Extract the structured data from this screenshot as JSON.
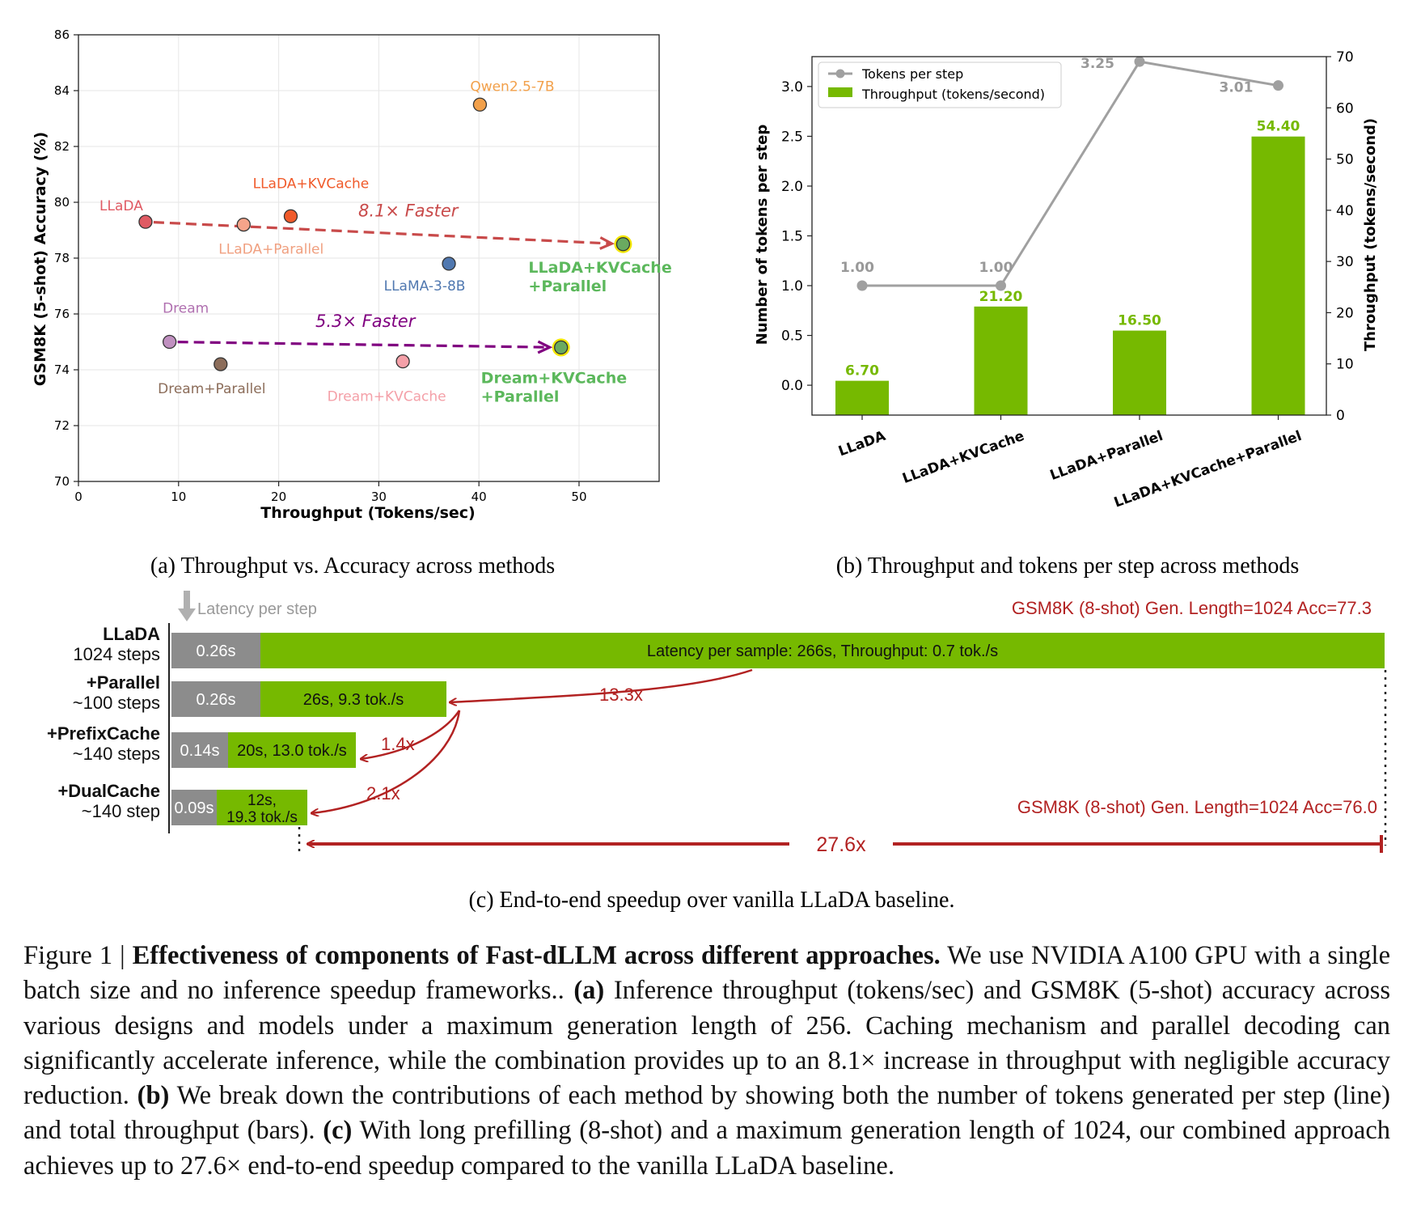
{
  "chart_data": [
    {
      "type": "scatter",
      "id": "a",
      "xlabel": "Throughput (Tokens/sec)",
      "ylabel": "GSM8K (5-shot) Accuracy (%)",
      "xlim": [
        0,
        58
      ],
      "ylim": [
        70,
        86
      ],
      "xticks": [
        0,
        10,
        20,
        30,
        40,
        50
      ],
      "yticks": [
        70,
        72,
        74,
        76,
        78,
        80,
        82,
        84,
        86
      ],
      "grid": true,
      "points": [
        {
          "name": "LLaDA",
          "x": 6.7,
          "y": 79.3,
          "color": "#e05a63",
          "label_color": "#e05a63"
        },
        {
          "name": "LLaDA+Parallel",
          "x": 16.5,
          "y": 79.2,
          "color": "#f5a48a",
          "label_color": "#f0a080"
        },
        {
          "name": "LLaDA+KVCache",
          "x": 21.2,
          "y": 79.5,
          "color": "#f05a2a",
          "label_color": "#f05a2a"
        },
        {
          "name": "Qwen2.5-7B",
          "x": 40.1,
          "y": 83.5,
          "color": "#f2a04a",
          "label_color": "#f2a04a"
        },
        {
          "name": "LLaMA-3-8B",
          "x": 37.0,
          "y": 77.8,
          "color": "#5078b0",
          "label_color": "#5078b0"
        },
        {
          "name": "LLaDA+KVCache\n+Parallel",
          "x": 54.4,
          "y": 78.5,
          "color": "#6aaa60",
          "label_color": "#5cb85c",
          "highlight": true
        },
        {
          "name": "Dream",
          "x": 9.1,
          "y": 75.0,
          "color": "#c090c0",
          "label_color": "#b070b0"
        },
        {
          "name": "Dream+Parallel",
          "x": 14.2,
          "y": 74.2,
          "color": "#8c6d5a",
          "label_color": "#8c6d5a"
        },
        {
          "name": "Dream+KVCache",
          "x": 32.4,
          "y": 74.3,
          "color": "#f4a0a8",
          "label_color": "#f4a0a8"
        },
        {
          "name": "Dream+KVCache\n+Parallel",
          "x": 48.2,
          "y": 74.8,
          "color": "#6aaa60",
          "label_color": "#5cb85c",
          "highlight": true
        }
      ],
      "arrows": [
        {
          "label": "8.1× Faster",
          "from": [
            6.7,
            79.3
          ],
          "to": [
            54.4,
            78.5
          ],
          "color": "#c84a4a"
        },
        {
          "label": "5.3× Faster",
          "from": [
            9.1,
            75.0
          ],
          "to": [
            48.2,
            74.8
          ],
          "color": "#800080"
        }
      ]
    },
    {
      "type": "bar+line",
      "id": "b",
      "categories": [
        "LLaDA",
        "LLaDA+KVCache",
        "LLaDA+Parallel",
        "LLaDA+KVCache+Parallel"
      ],
      "ylabel_left": "Number of tokens per step",
      "ylabel_right": "Throughput (tokens/second)",
      "ylim_left": [
        -0.3,
        3.3
      ],
      "ylim_right": [
        0,
        70
      ],
      "yticks_left": [
        "0.0",
        "0.5",
        "1.0",
        "1.5",
        "2.0",
        "2.5",
        "3.0"
      ],
      "yticks_right": [
        0,
        10,
        20,
        30,
        40,
        50,
        60,
        70
      ],
      "series": [
        {
          "name": "Tokens per step",
          "kind": "line",
          "axis": "left",
          "color": "#a0a0a0",
          "values": [
            1.0,
            1.0,
            3.25,
            3.01
          ],
          "labels": [
            "1.00",
            "1.00",
            "3.25",
            "3.01"
          ]
        },
        {
          "name": "Throughput (tokens/second)",
          "kind": "bar",
          "axis": "right",
          "color": "#76b900",
          "values": [
            6.7,
            21.2,
            16.5,
            54.4
          ],
          "labels": [
            "6.70",
            "21.20",
            "16.50",
            "54.40"
          ]
        }
      ],
      "legend": "top-left"
    },
    {
      "type": "bar",
      "id": "c",
      "legend_text": "Latency per step",
      "colors": {
        "step": "#8c8c8c",
        "sample": "#76b900",
        "annot": "#b22222"
      },
      "rows": [
        {
          "name": "LLaDA",
          "steps": "1024 steps",
          "step_latency": 0.26,
          "step_label": "0.26s",
          "sample_latency": 266,
          "sample_label": "Latency per sample: 266s, Throughput: 0.7 tok./s"
        },
        {
          "name": "+Parallel",
          "steps": "~100 steps",
          "step_latency": 0.26,
          "step_label": "0.26s",
          "sample_latency": 26,
          "sample_label": "26s, 9.3 tok./s"
        },
        {
          "name": "+PrefixCache",
          "steps": "~140 steps",
          "step_latency": 0.14,
          "step_label": "0.14s",
          "sample_latency": 20,
          "sample_label": "20s, 13.0 tok./s"
        },
        {
          "name": "+DualCache",
          "steps": "~140 step",
          "step_latency": 0.09,
          "step_label": "0.09s",
          "sample_latency": 12,
          "sample_label": "12s,\n19.3 tok./s"
        }
      ],
      "annotations": {
        "top_right": "GSM8K (8-shot) Gen. Length=1024 Acc=77.3",
        "bottom_right": "GSM8K (8-shot) Gen. Length=1024 Acc=76.0",
        "speedups": [
          "13.3x",
          "1.4x",
          "2.1x",
          "27.6x"
        ]
      }
    }
  ],
  "subcaptions": {
    "a": "(a) Throughput vs. Accuracy across methods",
    "b": "(b) Throughput and tokens per step across methods",
    "c": "(c) End-to-end speedup over vanilla LLaDA baseline."
  },
  "caption": {
    "prefix": "Figure 1 | ",
    "title": "Effectiveness of components of Fast-dLLM across different approaches.",
    "t1": " We use NVIDIA A100 GPU with a single batch size and no inference speedup frameworks.. ",
    "a_tag": "(a)",
    "t2": " Inference throughput (tokens/sec) and GSM8K (5-shot) accuracy across various designs and models under a maximum generation length of 256. Caching mechanism and parallel decoding can significantly accelerate inference, while the combination provides up to an 8.1× increase in throughput with negligible accuracy reduction. ",
    "b_tag": "(b)",
    "t3": " We break down the contributions of each method by showing both the number of tokens generated per step (line) and total throughput (bars). ",
    "c_tag": "(c)",
    "t4": " With long prefilling (8-shot) and a maximum generation length of 1024, our combined approach achieves up to 27.6× end-to-end speedup compared to the vanilla LLaDA baseline."
  }
}
